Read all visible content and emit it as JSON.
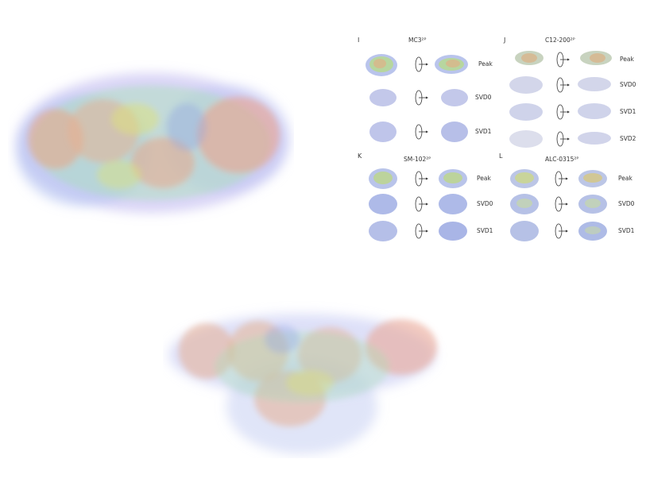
{
  "blobs": {
    "large_top_left": "large-density-render",
    "large_bottom": "bottom-density-render"
  },
  "panels": [
    {
      "letter": "I",
      "title": "MC3²ᴾ",
      "rows": [
        "Peak",
        "SVD0",
        "SVD1"
      ]
    },
    {
      "letter": "J",
      "title": "C12-200²ᴾ",
      "rows": [
        "Peak",
        "SVD0",
        "SVD1",
        "SVD2"
      ]
    },
    {
      "letter": "K",
      "title": "SM-102²ᴾ",
      "rows": [
        "Peak",
        "SVD0",
        "SVD1"
      ]
    },
    {
      "letter": "L",
      "title": "ALC-0315²ᴾ",
      "rows": [
        "Peak",
        "SVD0",
        "SVD1"
      ]
    }
  ],
  "colors": {
    "density_orange": "#e8a98a",
    "density_yellow": "#dde27a",
    "density_green": "#a9e0b5",
    "density_blue": "#8fa3e6",
    "density_violet": "#b9b3ef"
  }
}
